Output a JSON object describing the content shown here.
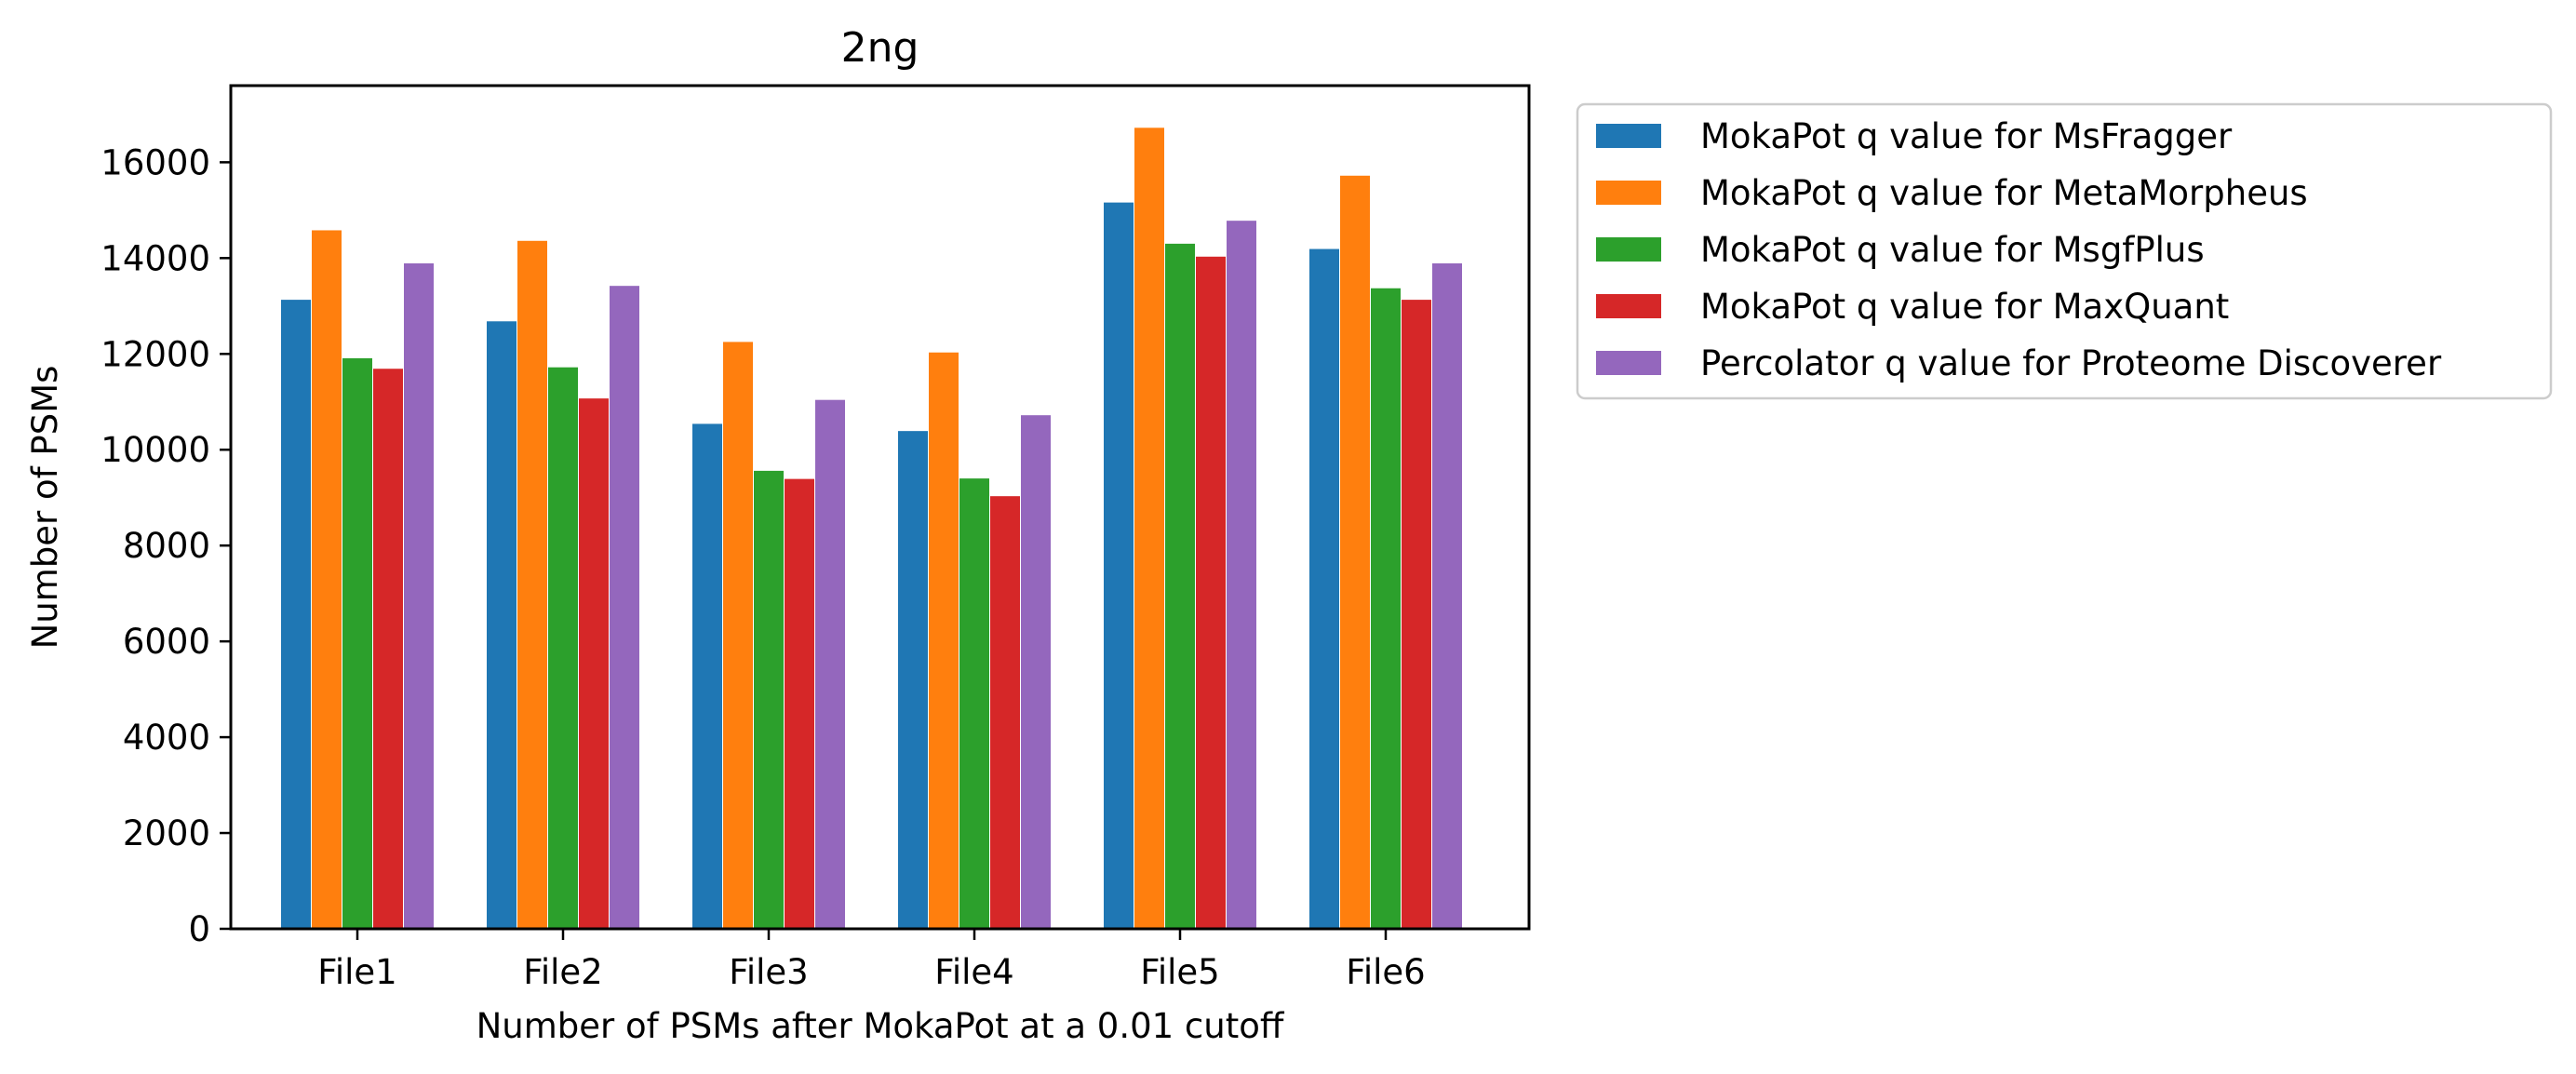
{
  "chart_data": {
    "type": "bar",
    "title": "2ng",
    "xlabel": "Number of PSMs after MokaPot at a 0.01 cutoff",
    "ylabel": "Number of PSMs",
    "ylim": [
      0,
      17600
    ],
    "yticks": [
      0,
      2000,
      4000,
      6000,
      8000,
      10000,
      12000,
      14000,
      16000
    ],
    "categories": [
      "File1",
      "File2",
      "File3",
      "File4",
      "File5",
      "File6"
    ],
    "series": [
      {
        "name": "MokaPot q value for MsFragger",
        "color": "#1f77b4",
        "values": [
          13130,
          12680,
          10540,
          10390,
          15160,
          14190
        ]
      },
      {
        "name": "MokaPot q value for MetaMorpheus",
        "color": "#ff7f0e",
        "values": [
          14580,
          14360,
          12250,
          12030,
          16720,
          15720
        ]
      },
      {
        "name": "MokaPot q value for MsgfPlus",
        "color": "#2ca02c",
        "values": [
          11910,
          11720,
          9560,
          9400,
          14300,
          13370
        ]
      },
      {
        "name": "MokaPot q value for MaxQuant",
        "color": "#d62728",
        "values": [
          11690,
          11070,
          9390,
          9030,
          14030,
          13130
        ]
      },
      {
        "name": "Percolator q value for Proteome Discoverer",
        "color": "#9467bd",
        "values": [
          13890,
          13420,
          11040,
          10720,
          14780,
          13890
        ]
      }
    ],
    "grid": false,
    "legend_position": "outside-top-right"
  }
}
